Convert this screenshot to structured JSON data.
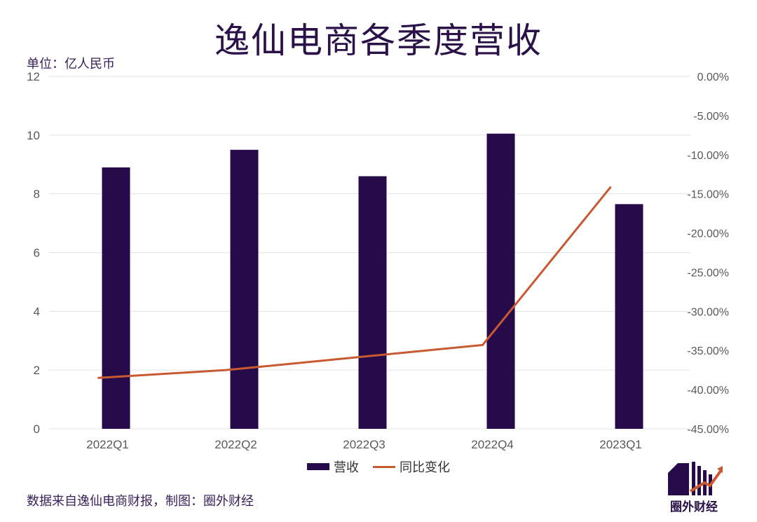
{
  "title": "逸仙电商各季度营收",
  "unit_label": "单位：亿人民币",
  "source_note": "数据来自逸仙电商财报，制图：圈外财经",
  "logo_text": "圈外财经",
  "colors": {
    "bar": "#260a4a",
    "line": "#c85a32",
    "grid": "#e3e3e3",
    "axis_text": "#595959"
  },
  "chart_data": {
    "type": "bar+line",
    "categories": [
      "2022Q1",
      "2022Q2",
      "2022Q3",
      "2022Q4",
      "2023Q1"
    ],
    "series": [
      {
        "name": "营收",
        "type": "bar",
        "axis": "left",
        "values": [
          8.9,
          9.5,
          8.6,
          10.05,
          7.65
        ]
      },
      {
        "name": "同比变化",
        "type": "line",
        "axis": "right",
        "values": [
          -38.5,
          -37.5,
          -35.9,
          -34.3,
          -14.1
        ]
      }
    ],
    "y_left": {
      "min": 0,
      "max": 12,
      "ticks": [
        0,
        2,
        4,
        6,
        8,
        10,
        12
      ]
    },
    "y_right": {
      "min": -45,
      "max": 0,
      "ticks": [
        0,
        -5,
        -10,
        -15,
        -20,
        -25,
        -30,
        -35,
        -40,
        -45
      ],
      "tick_labels": [
        "0.00%",
        "-5.00%",
        "-10.00%",
        "-15.00%",
        "-20.00%",
        "-25.00%",
        "-30.00%",
        "-35.00%",
        "-40.00%",
        "-45.00%"
      ]
    },
    "grid": true,
    "legend_position": "bottom"
  }
}
